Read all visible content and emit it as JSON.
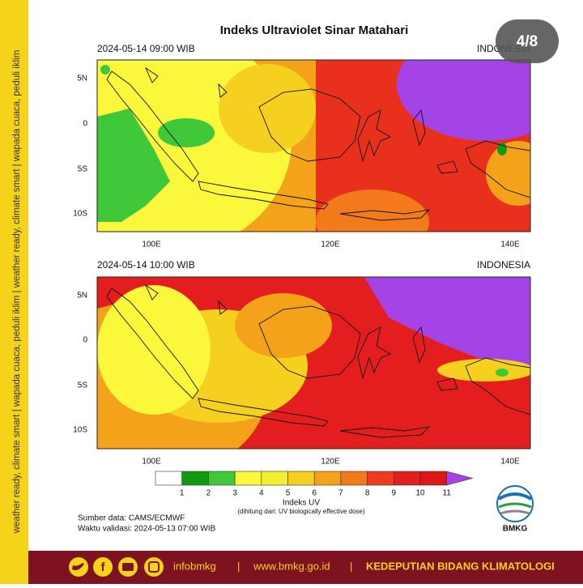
{
  "title": "Indeks Ultraviolet Sinar Matahari",
  "badge": "4/8",
  "side_text": "weather ready, climate smart | wapada cuaca, peduli iklim | weather ready, climate smart | wapada cuaca, peduli iklim",
  "panels": [
    {
      "time": "2024-05-14  09:00 WIB",
      "region": "INDONESIA"
    },
    {
      "time": "2024-05-14  10:00 WIB",
      "region": "INDONESIA"
    }
  ],
  "lat_labels": [
    "5N",
    "0",
    "5S",
    "10S"
  ],
  "lon_labels": [
    "100E",
    "120E",
    "140E"
  ],
  "legend": {
    "title": "Indeks UV",
    "note": "(dihitung dari: UV biologically effective dose)",
    "ticks": [
      1,
      2,
      3,
      4,
      5,
      6,
      7,
      8,
      9,
      10,
      11
    ],
    "colors": [
      "#ffffff",
      "#0f9a12",
      "#3fc83a",
      "#fbf73a",
      "#f2f02c",
      "#f5d01e",
      "#f5a21b",
      "#f27a1a",
      "#ee3a1e",
      "#e41e1e",
      "#de1616",
      "#a544e6"
    ]
  },
  "source": "Sumber data: CAMS/ECMWF",
  "validity": "Waktu validasi: 2024-05-13 07:00 WIB",
  "logo": "BMKG",
  "footer": {
    "handle": "infobmkg",
    "separator": "|",
    "website": "www.bmkg.go.id",
    "unit": "KEDEPUTIAN BIDANG KLIMATOLOGI"
  }
}
